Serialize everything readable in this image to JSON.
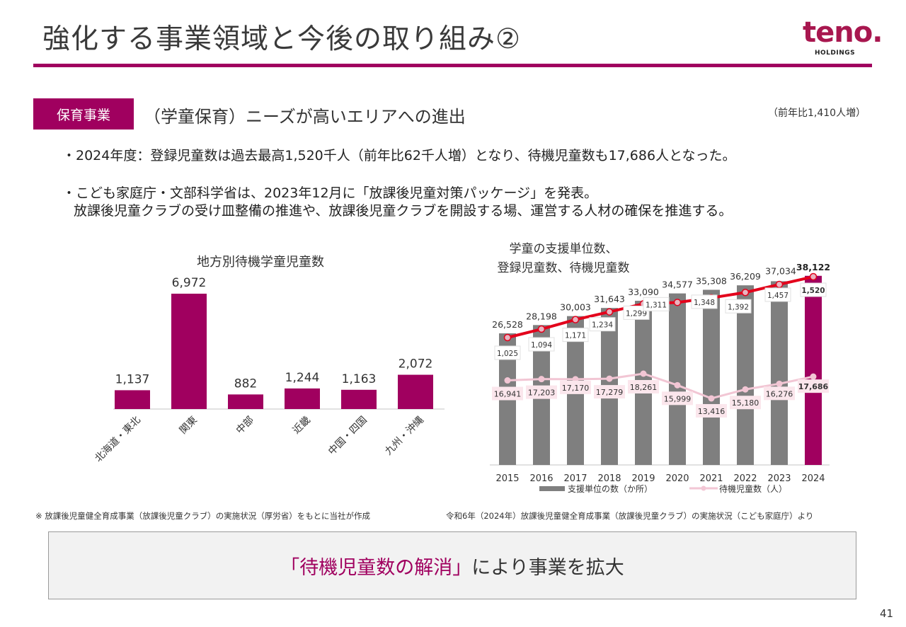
{
  "header": {
    "title": "強化する事業領域と今後の取り組み②",
    "logo": {
      "wordmark": "teno.",
      "subtitle": "HOLDINGS",
      "color": "#a8174f"
    },
    "accent_color": "#a0005f"
  },
  "section": {
    "badge": "保育事業",
    "heading": "（学童保育）ニーズが高いエリアへの進出",
    "yoy_note": "（前年比1,410人増）"
  },
  "bullets": [
    "・2024年度：登録児童数は過去最高1,520千人（前年比62千人増）となり、待機児童数も17,686人となった。",
    "・こども家庭庁・文部科学省は、2023年12月に「放課後児童対策パッケージ」を発表。",
    "放課後児童クラブの受け皿整備の推進や、放課後児童クラブを開設する場、運営する人材の確保を推進する。"
  ],
  "chart_data": [
    {
      "type": "bar",
      "title": "地方別待機学童児童数",
      "categories": [
        "北海道・東北",
        "関東",
        "中部",
        "近畿",
        "中国・四国",
        "九州・沖縄"
      ],
      "values": [
        1137,
        6972,
        882,
        1244,
        1163,
        2072
      ],
      "value_labels": [
        "1,137",
        "6,972",
        "882",
        "1,244",
        "1,163",
        "2,072"
      ],
      "xlabel": "",
      "ylabel": "",
      "ylim": [
        0,
        7000
      ],
      "bar_color": "#a0005f",
      "grid": false,
      "legend": "none"
    },
    {
      "type": "bar",
      "title_lines": [
        "学童の支援単位数、",
        "登録児童数、待機児童数"
      ],
      "categories": [
        "2015",
        "2016",
        "2017",
        "2018",
        "2019",
        "2020",
        "2021",
        "2022",
        "2023",
        "2024"
      ],
      "series": [
        {
          "name": "支援単位の数（か所）",
          "kind": "bar",
          "values": [
            26528,
            28198,
            30003,
            31643,
            33090,
            34577,
            35308,
            36209,
            37034,
            38122
          ],
          "labels": [
            "26,528",
            "28,198",
            "30,003",
            "31,643",
            "33,090",
            "34,577",
            "35,308",
            "36,209",
            "37,034",
            "38,122"
          ],
          "color": "#7f7f7f",
          "highlight_color": "#a0005f",
          "highlight_last": true
        },
        {
          "name": "登録児童数（千人）",
          "kind": "line",
          "values": [
            1025,
            1094,
            1171,
            1234,
            1299,
            1311,
            1348,
            1392,
            1457,
            1520
          ],
          "labels": [
            "1,025",
            "1,094",
            "1,171",
            "1,234",
            "1,299",
            "1,311",
            "1,348",
            "1,392",
            "1,457",
            "1,520"
          ],
          "color": "#e3001b",
          "show_in_legend": false
        },
        {
          "name": "待機児童数（人）",
          "kind": "line",
          "values": [
            16941,
            17203,
            17170,
            17279,
            18261,
            15999,
            13416,
            15180,
            16276,
            17686
          ],
          "labels": [
            "16,941",
            "17,203",
            "17,170",
            "17,279",
            "18,261",
            "15,999",
            "13,416",
            "15,180",
            "16,276",
            "17,686"
          ],
          "color": "#f2c6d4"
        }
      ],
      "legend": "bottom",
      "legend_entries": [
        "支援単位の数（か所）",
        "待機児童数（人）"
      ],
      "ylim_bars": [
        0,
        40000
      ],
      "grid": false
    }
  ],
  "sources": {
    "left": "※ 放課後児童健全育成事業（放課後児童クラブ）の実施状況（厚労省）をもとに当社が作成",
    "right": "令和6年（2024年）放課後児童健全育成事業（放課後児童クラブ）の実施状況（こども家庭庁）より"
  },
  "conclusion": {
    "highlight": "「待機児童数の解消」",
    "rest": "により事業を拡大"
  },
  "page_number": "41"
}
